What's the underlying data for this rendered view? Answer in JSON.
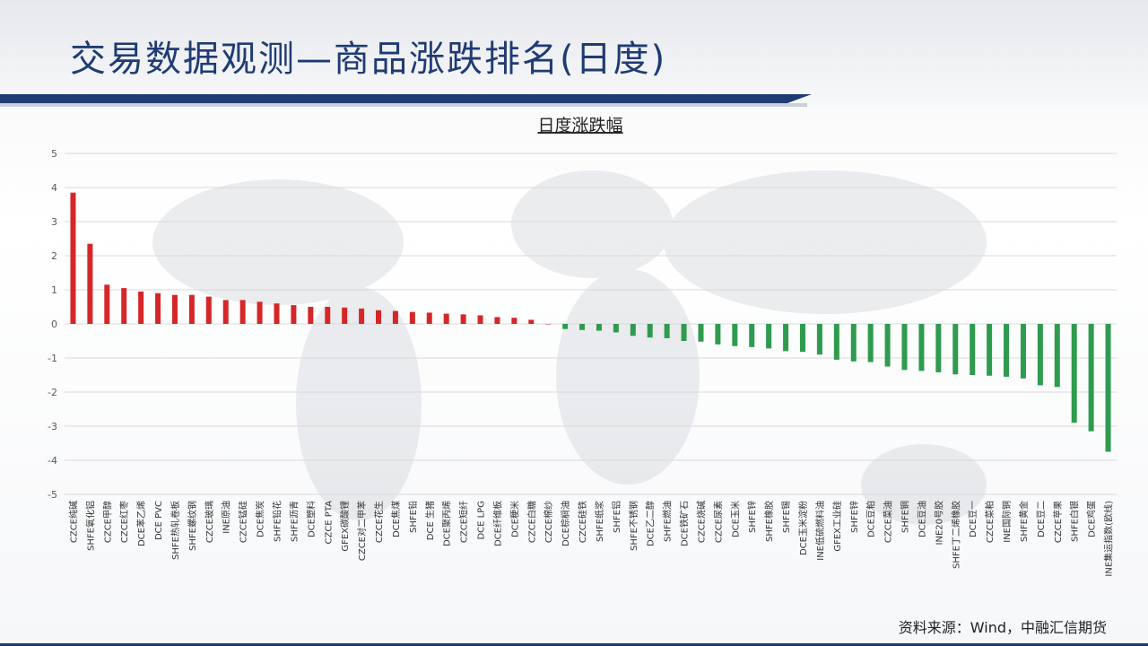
{
  "page": {
    "title": "交易数据观测—商品涨跌排名(日度)",
    "source": "资料来源：Wind，中融汇信期货"
  },
  "colors": {
    "up": "#d62728",
    "down": "#2e9b4e",
    "title": "#1f3b73",
    "grid": "#d9d9d9",
    "axis_text": "#595959"
  },
  "chart_data": {
    "type": "bar",
    "title": "日度涨跌幅",
    "xlabel": "",
    "ylabel": "",
    "ylim": [
      -5,
      5
    ],
    "yticks": [
      5,
      4,
      3,
      2,
      1,
      0,
      -1,
      -2,
      -3,
      -4,
      -5
    ],
    "grid": true,
    "categories": [
      "CZCE纯碱",
      "SHFE氧化铝",
      "CZCE甲醇",
      "CZCE红枣",
      "DCE苯乙烯",
      "DCE PVC",
      "SHFE热轧卷板",
      "SHFE螺纹钢",
      "CZCE玻璃",
      "INE原油",
      "CZCE锰硅",
      "DCE焦炭",
      "SHFE铅花",
      "SHFE沥青",
      "DCE塑料",
      "CZCE PTA",
      "GFEX碳酸锂",
      "CZCE对二甲苯",
      "CZCE花生",
      "DCE焦煤",
      "SHFE铅",
      "DCE 生猪",
      "DCE聚丙烯",
      "CZCE短纤",
      "DCE LPG",
      "DCE纤维板",
      "DCE粳米",
      "CZCE白糖",
      "CZCE棉纱",
      "DCE棕榈油",
      "CZCE硅铁",
      "SHFE纸浆",
      "SHFE铝",
      "SHFE不锈钢",
      "DCE乙二醇",
      "SHFE燃油",
      "DCE铁矿石",
      "CZCE烧碱",
      "CZCE尿素",
      "DCE玉米",
      "SHFE锌",
      "SHFE橡胶",
      "SHFE锡",
      "DCE玉米淀粉",
      "INE低硫燃料油",
      "GFEX工业硅",
      "SHFE锌",
      "DCE豆粕",
      "CZCE菜油",
      "SHFE铜",
      "DCE豆油",
      "INE20号胶",
      "SHFE丁二烯橡胶",
      "DCE豆一",
      "CZCE菜粕",
      "INE国际铜",
      "SHFE黄金",
      "DCE豆二",
      "CZCE苹果",
      "SHFE白银",
      "DCE鸡蛋",
      "INE集运指数(欧线)"
    ],
    "values": [
      3.85,
      2.35,
      1.15,
      1.05,
      0.95,
      0.9,
      0.85,
      0.85,
      0.8,
      0.7,
      0.7,
      0.65,
      0.6,
      0.55,
      0.5,
      0.5,
      0.48,
      0.45,
      0.4,
      0.38,
      0.35,
      0.33,
      0.3,
      0.28,
      0.25,
      0.2,
      0.18,
      0.12,
      0.0,
      -0.15,
      -0.18,
      -0.2,
      -0.25,
      -0.35,
      -0.4,
      -0.42,
      -0.5,
      -0.52,
      -0.6,
      -0.65,
      -0.68,
      -0.72,
      -0.8,
      -0.82,
      -0.9,
      -1.05,
      -1.1,
      -1.12,
      -1.25,
      -1.35,
      -1.38,
      -1.42,
      -1.48,
      -1.5,
      -1.52,
      -1.55,
      -1.6,
      -1.8,
      -1.85,
      -2.9,
      -3.15,
      -3.75
    ]
  }
}
